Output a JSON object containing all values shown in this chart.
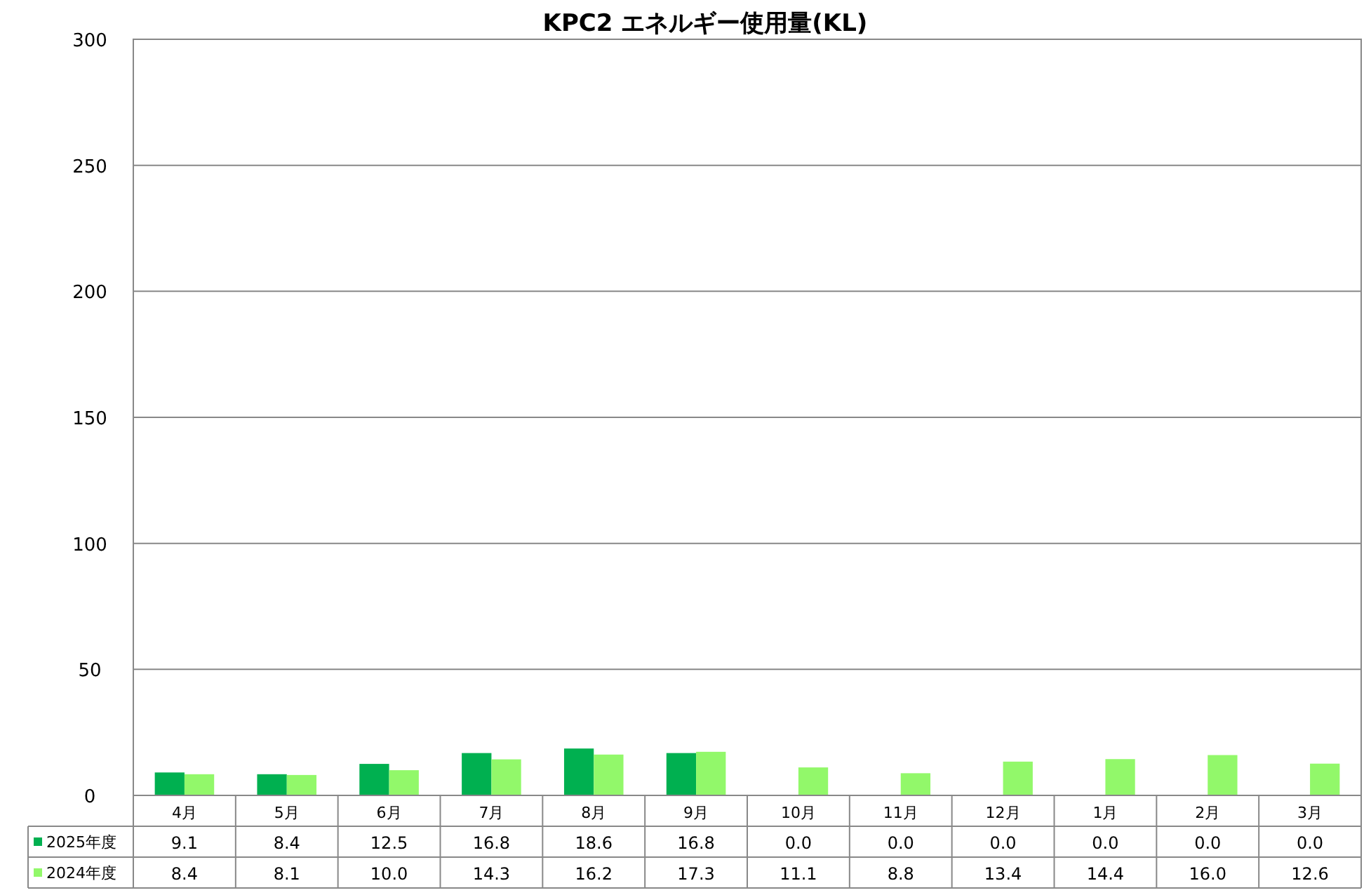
{
  "chart_data": {
    "type": "bar",
    "title": "KPC2 エネルギー使用量(KL)",
    "categories": [
      "4月",
      "5月",
      "6月",
      "7月",
      "8月",
      "9月",
      "10月",
      "11月",
      "12月",
      "1月",
      "2月",
      "3月"
    ],
    "series": [
      {
        "name": "2025年度",
        "color": "#00b050",
        "values": [
          9.1,
          8.4,
          12.5,
          16.8,
          18.6,
          16.8,
          0.0,
          0.0,
          0.0,
          0.0,
          0.0,
          0.0
        ],
        "value_labels": [
          "9.1",
          "8.4",
          "12.5",
          "16.8",
          "18.6",
          "16.8",
          "0.0",
          "0.0",
          "0.0",
          "0.0",
          "0.0",
          "0.0"
        ]
      },
      {
        "name": "2024年度",
        "color": "#92f86a",
        "values": [
          8.4,
          8.1,
          10.0,
          14.3,
          16.2,
          17.3,
          11.1,
          8.8,
          13.4,
          14.4,
          16.0,
          12.6
        ],
        "value_labels": [
          "8.4",
          "8.1",
          "10.0",
          "14.3",
          "16.2",
          "17.3",
          "11.1",
          "8.8",
          "13.4",
          "14.4",
          "16.0",
          "12.6"
        ]
      }
    ],
    "ylim": [
      0,
      300
    ],
    "yticks": [
      0,
      50,
      100,
      150,
      200,
      250,
      300
    ],
    "grid": "y",
    "legend": "bottom"
  }
}
